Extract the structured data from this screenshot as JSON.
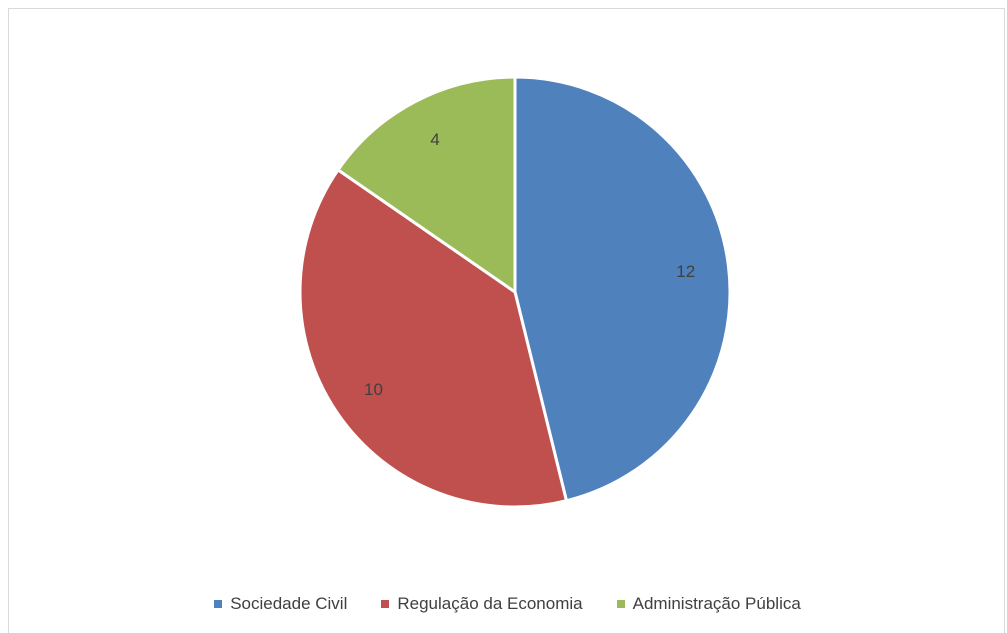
{
  "chart_data": {
    "type": "pie",
    "categories": [
      "Sociedade Civil",
      "Regulação da Economia",
      "Administração Pública"
    ],
    "values": [
      12,
      10,
      4
    ],
    "colors": [
      "#4f81bd",
      "#c0504d",
      "#9bbb59"
    ],
    "data_labels": [
      "12",
      "10",
      "4"
    ],
    "legend_position": "bottom",
    "start_angle": "12 o'clock",
    "direction": "clockwise"
  }
}
